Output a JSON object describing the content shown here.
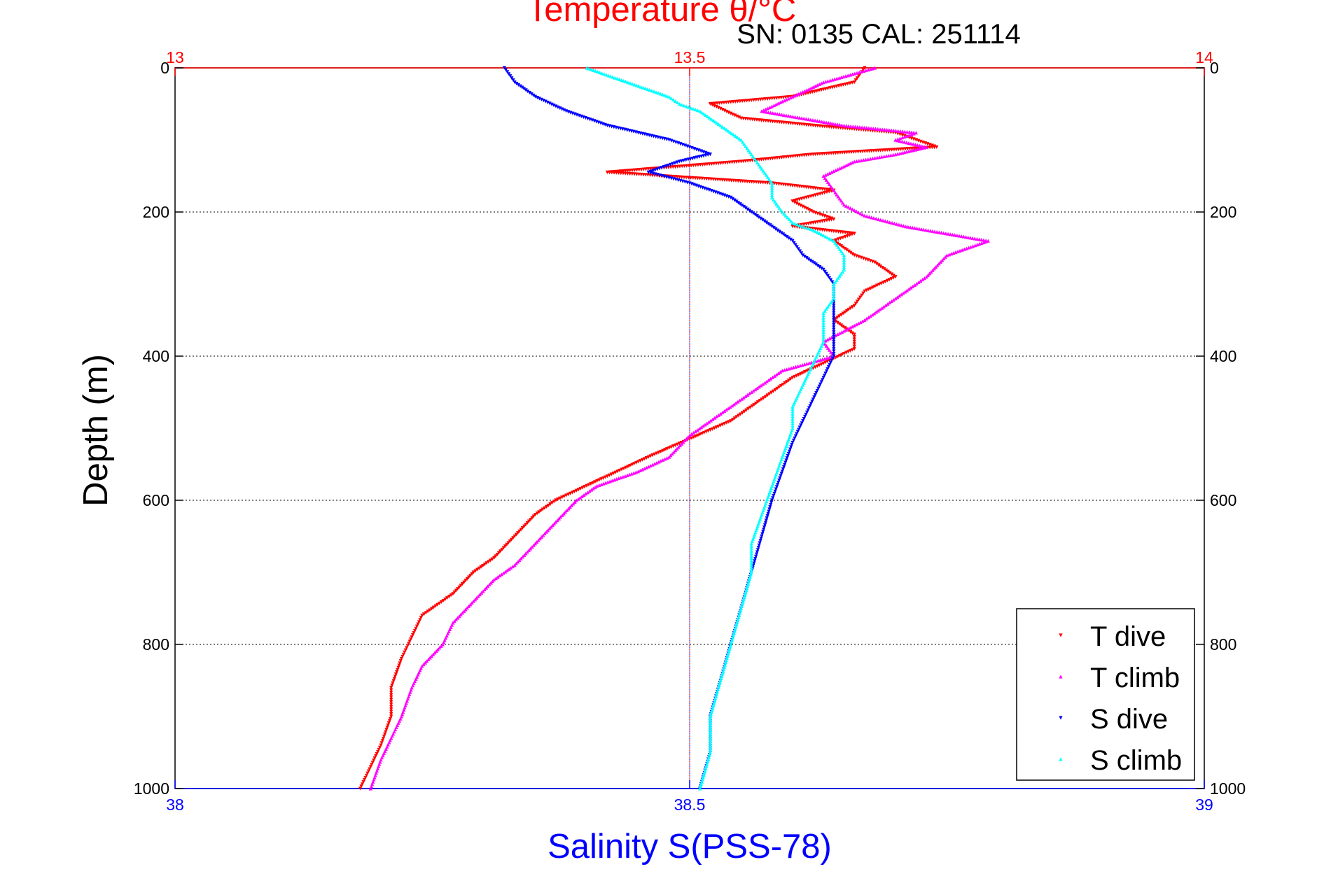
{
  "chart_data": {
    "type": "scatter",
    "title": "Temperature θ/°C",
    "subtitle": "SN: 0135  CAL: 251114",
    "xlabel": "Salinity S(PSS-78)",
    "ylabel": "Depth (m)",
    "temperature_axis": {
      "label": "Temperature θ/°C",
      "range": [
        13,
        14
      ],
      "ticks": [
        "13",
        "13.5",
        "14"
      ],
      "color": "#ff0000"
    },
    "salinity_axis": {
      "label": "Salinity S(PSS-78)",
      "range": [
        38,
        39
      ],
      "ticks": [
        "38",
        "38.5",
        "39"
      ],
      "color": "#0000ff"
    },
    "depth_axis": {
      "label": "Depth (m)",
      "range": [
        0,
        1000
      ],
      "reversed": true,
      "ticks": [
        "0",
        "200",
        "400",
        "600",
        "800",
        "1000"
      ]
    },
    "grid": true,
    "legend_position": "bottom-right",
    "series": [
      {
        "name": "T dive",
        "axis": "temperature",
        "color": "#ff0000",
        "marker": "triangle-down",
        "points": [
          [
            13.67,
            0
          ],
          [
            13.66,
            20
          ],
          [
            13.6,
            40
          ],
          [
            13.52,
            50
          ],
          [
            13.55,
            70
          ],
          [
            13.62,
            80
          ],
          [
            13.7,
            90
          ],
          [
            13.72,
            100
          ],
          [
            13.74,
            110
          ],
          [
            13.62,
            120
          ],
          [
            13.55,
            130
          ],
          [
            13.42,
            145
          ],
          [
            13.58,
            160
          ],
          [
            13.64,
            170
          ],
          [
            13.6,
            185
          ],
          [
            13.62,
            200
          ],
          [
            13.64,
            210
          ],
          [
            13.6,
            220
          ],
          [
            13.66,
            230
          ],
          [
            13.64,
            240
          ],
          [
            13.66,
            260
          ],
          [
            13.68,
            270
          ],
          [
            13.7,
            290
          ],
          [
            13.67,
            310
          ],
          [
            13.66,
            330
          ],
          [
            13.64,
            350
          ],
          [
            13.66,
            370
          ],
          [
            13.66,
            390
          ],
          [
            13.63,
            410
          ],
          [
            13.6,
            430
          ],
          [
            13.57,
            460
          ],
          [
            13.54,
            490
          ],
          [
            13.5,
            515
          ],
          [
            13.46,
            540
          ],
          [
            13.43,
            560
          ],
          [
            13.4,
            580
          ],
          [
            13.37,
            600
          ],
          [
            13.35,
            620
          ],
          [
            13.33,
            650
          ],
          [
            13.31,
            680
          ],
          [
            13.29,
            700
          ],
          [
            13.27,
            730
          ],
          [
            13.24,
            760
          ],
          [
            13.23,
            790
          ],
          [
            13.22,
            820
          ],
          [
            13.21,
            860
          ],
          [
            13.21,
            900
          ],
          [
            13.2,
            940
          ],
          [
            13.19,
            970
          ],
          [
            13.18,
            1000
          ]
        ]
      },
      {
        "name": "T climb",
        "axis": "temperature",
        "color": "#ff00ff",
        "marker": "triangle-up",
        "points": [
          [
            13.68,
            0
          ],
          [
            13.63,
            20
          ],
          [
            13.6,
            40
          ],
          [
            13.57,
            60
          ],
          [
            13.65,
            80
          ],
          [
            13.72,
            90
          ],
          [
            13.7,
            100
          ],
          [
            13.73,
            110
          ],
          [
            13.7,
            120
          ],
          [
            13.66,
            130
          ],
          [
            13.63,
            150
          ],
          [
            13.64,
            170
          ],
          [
            13.65,
            190
          ],
          [
            13.67,
            205
          ],
          [
            13.71,
            220
          ],
          [
            13.79,
            240
          ],
          [
            13.75,
            260
          ],
          [
            13.73,
            290
          ],
          [
            13.7,
            320
          ],
          [
            13.67,
            350
          ],
          [
            13.63,
            380
          ],
          [
            13.64,
            400
          ],
          [
            13.59,
            420
          ],
          [
            13.56,
            450
          ],
          [
            13.53,
            480
          ],
          [
            13.5,
            510
          ],
          [
            13.48,
            540
          ],
          [
            13.45,
            560
          ],
          [
            13.41,
            580
          ],
          [
            13.39,
            600
          ],
          [
            13.37,
            630
          ],
          [
            13.35,
            660
          ],
          [
            13.33,
            690
          ],
          [
            13.31,
            710
          ],
          [
            13.29,
            740
          ],
          [
            13.27,
            770
          ],
          [
            13.26,
            800
          ],
          [
            13.24,
            830
          ],
          [
            13.23,
            860
          ],
          [
            13.22,
            900
          ],
          [
            13.21,
            930
          ],
          [
            13.2,
            960
          ],
          [
            13.19,
            1000
          ]
        ]
      },
      {
        "name": "S dive",
        "axis": "salinity",
        "color": "#0000ff",
        "marker": "triangle-down",
        "points": [
          [
            38.32,
            0
          ],
          [
            38.33,
            20
          ],
          [
            38.35,
            40
          ],
          [
            38.38,
            60
          ],
          [
            38.42,
            80
          ],
          [
            38.48,
            100
          ],
          [
            38.5,
            110
          ],
          [
            38.52,
            120
          ],
          [
            38.49,
            130
          ],
          [
            38.46,
            145
          ],
          [
            38.5,
            160
          ],
          [
            38.54,
            180
          ],
          [
            38.56,
            200
          ],
          [
            38.58,
            220
          ],
          [
            38.6,
            240
          ],
          [
            38.61,
            260
          ],
          [
            38.63,
            280
          ],
          [
            38.64,
            300
          ],
          [
            38.64,
            320
          ],
          [
            38.64,
            340
          ],
          [
            38.64,
            360
          ],
          [
            38.64,
            380
          ],
          [
            38.64,
            400
          ],
          [
            38.63,
            430
          ],
          [
            38.62,
            460
          ],
          [
            38.61,
            490
          ],
          [
            38.6,
            520
          ],
          [
            38.59,
            560
          ],
          [
            38.58,
            600
          ],
          [
            38.57,
            650
          ],
          [
            38.56,
            700
          ],
          [
            38.55,
            750
          ],
          [
            38.54,
            800
          ],
          [
            38.53,
            850
          ],
          [
            38.52,
            900
          ],
          [
            38.52,
            950
          ],
          [
            38.51,
            1000
          ]
        ]
      },
      {
        "name": "S climb",
        "axis": "salinity",
        "color": "#00ffff",
        "marker": "triangle-up",
        "points": [
          [
            38.4,
            0
          ],
          [
            38.44,
            20
          ],
          [
            38.48,
            40
          ],
          [
            38.49,
            50
          ],
          [
            38.51,
            60
          ],
          [
            38.53,
            80
          ],
          [
            38.55,
            100
          ],
          [
            38.56,
            120
          ],
          [
            38.57,
            140
          ],
          [
            38.58,
            160
          ],
          [
            38.58,
            180
          ],
          [
            38.59,
            200
          ],
          [
            38.6,
            215
          ],
          [
            38.62,
            225
          ],
          [
            38.64,
            240
          ],
          [
            38.65,
            260
          ],
          [
            38.65,
            280
          ],
          [
            38.64,
            300
          ],
          [
            38.64,
            320
          ],
          [
            38.63,
            340
          ],
          [
            38.63,
            360
          ],
          [
            38.63,
            380
          ],
          [
            38.62,
            410
          ],
          [
            38.61,
            440
          ],
          [
            38.6,
            470
          ],
          [
            38.6,
            500
          ],
          [
            38.59,
            540
          ],
          [
            38.58,
            580
          ],
          [
            38.57,
            620
          ],
          [
            38.56,
            660
          ],
          [
            38.56,
            700
          ],
          [
            38.55,
            750
          ],
          [
            38.54,
            800
          ],
          [
            38.53,
            850
          ],
          [
            38.52,
            900
          ],
          [
            38.52,
            950
          ],
          [
            38.51,
            1000
          ]
        ]
      }
    ]
  }
}
